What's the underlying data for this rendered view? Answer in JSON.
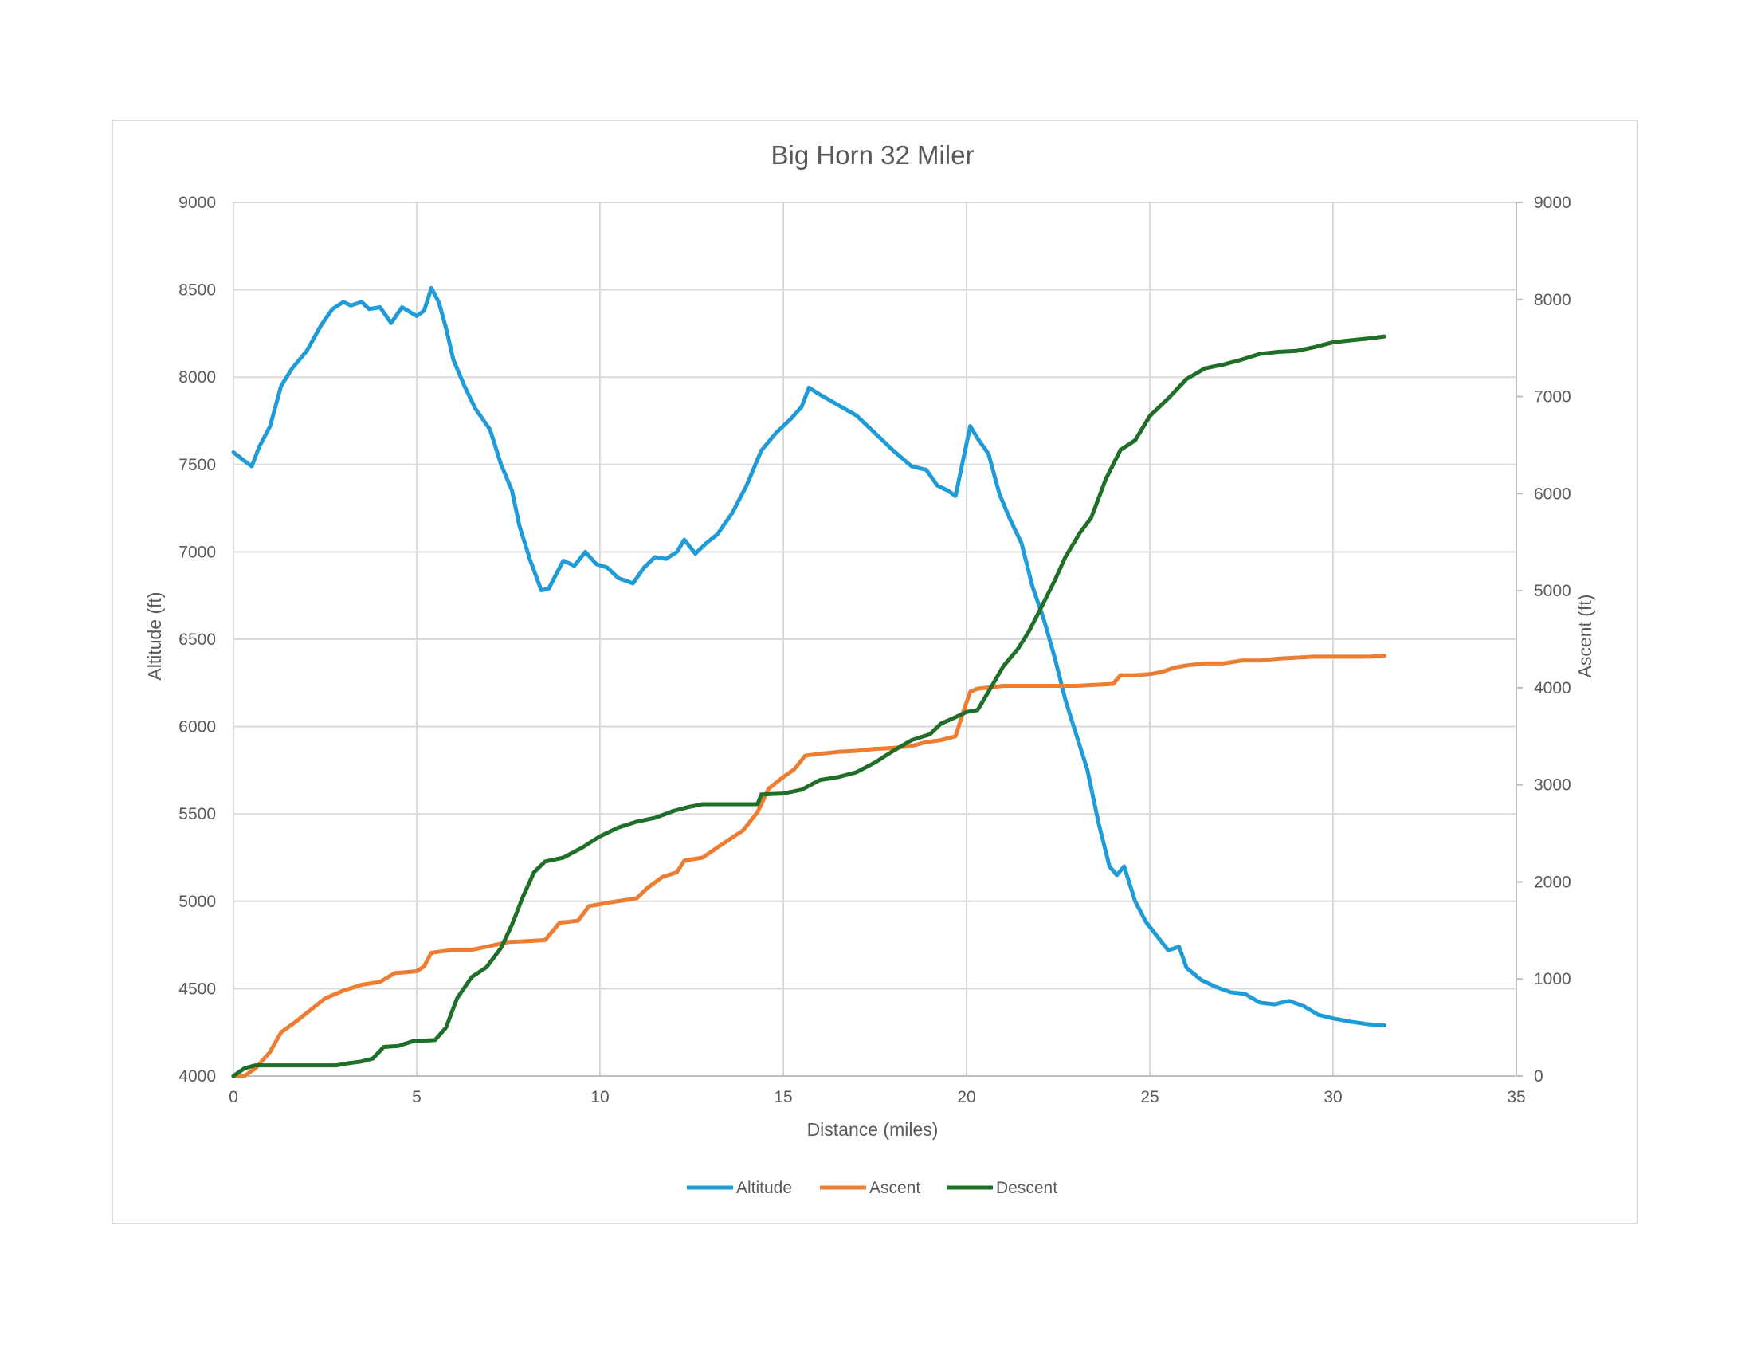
{
  "chart_data": {
    "type": "line",
    "title": "Big Horn 32 Miler",
    "xlabel": "Distance (miles)",
    "ylabel": "Altitude (ft)",
    "y2label": "Ascent (ft)",
    "xlim": [
      0,
      35
    ],
    "ylim": [
      4000,
      9000
    ],
    "y2lim": [
      0,
      9000
    ],
    "x_ticks": [
      "0",
      "5",
      "10",
      "15",
      "20",
      "25",
      "30",
      "35"
    ],
    "y_ticks": [
      "4000",
      "4500",
      "5000",
      "5500",
      "6000",
      "6500",
      "7000",
      "7500",
      "8000",
      "8500",
      "9000"
    ],
    "y2_ticks": [
      "0",
      "1000",
      "2000",
      "3000",
      "4000",
      "5000",
      "6000",
      "7000",
      "8000",
      "9000"
    ],
    "x_tick_values": [
      0,
      5,
      10,
      15,
      20,
      25,
      30,
      35
    ],
    "y_tick_values": [
      4000,
      4500,
      5000,
      5500,
      6000,
      6500,
      7000,
      7500,
      8000,
      8500,
      9000
    ],
    "y2_tick_values": [
      0,
      1000,
      2000,
      3000,
      4000,
      5000,
      6000,
      7000,
      8000,
      9000
    ],
    "grid": true,
    "legend_position": "bottom",
    "series": [
      {
        "name": "Altitude",
        "axis": "left",
        "color": "#1f9bd7",
        "points": [
          [
            0,
            7570
          ],
          [
            0.3,
            7520
          ],
          [
            0.5,
            7490
          ],
          [
            0.7,
            7600
          ],
          [
            1.0,
            7720
          ],
          [
            1.3,
            7950
          ],
          [
            1.6,
            8050
          ],
          [
            2.0,
            8150
          ],
          [
            2.4,
            8300
          ],
          [
            2.7,
            8390
          ],
          [
            3.0,
            8430
          ],
          [
            3.2,
            8410
          ],
          [
            3.5,
            8430
          ],
          [
            3.7,
            8390
          ],
          [
            4.0,
            8400
          ],
          [
            4.3,
            8310
          ],
          [
            4.6,
            8400
          ],
          [
            5.0,
            8350
          ],
          [
            5.2,
            8380
          ],
          [
            5.4,
            8510
          ],
          [
            5.6,
            8430
          ],
          [
            5.8,
            8280
          ],
          [
            6.0,
            8100
          ],
          [
            6.3,
            7950
          ],
          [
            6.6,
            7820
          ],
          [
            7.0,
            7700
          ],
          [
            7.3,
            7500
          ],
          [
            7.6,
            7350
          ],
          [
            7.8,
            7150
          ],
          [
            8.1,
            6950
          ],
          [
            8.4,
            6780
          ],
          [
            8.6,
            6790
          ],
          [
            9.0,
            6950
          ],
          [
            9.3,
            6920
          ],
          [
            9.6,
            7000
          ],
          [
            9.9,
            6930
          ],
          [
            10.2,
            6910
          ],
          [
            10.5,
            6850
          ],
          [
            10.9,
            6820
          ],
          [
            11.2,
            6910
          ],
          [
            11.5,
            6970
          ],
          [
            11.8,
            6960
          ],
          [
            12.1,
            7000
          ],
          [
            12.3,
            7070
          ],
          [
            12.6,
            6990
          ],
          [
            12.9,
            7050
          ],
          [
            13.2,
            7100
          ],
          [
            13.6,
            7220
          ],
          [
            14.0,
            7380
          ],
          [
            14.4,
            7580
          ],
          [
            14.8,
            7680
          ],
          [
            15.2,
            7760
          ],
          [
            15.5,
            7830
          ],
          [
            15.7,
            7940
          ],
          [
            16.0,
            7900
          ],
          [
            16.5,
            7840
          ],
          [
            17.0,
            7780
          ],
          [
            17.5,
            7680
          ],
          [
            18.0,
            7580
          ],
          [
            18.5,
            7490
          ],
          [
            18.9,
            7470
          ],
          [
            19.2,
            7380
          ],
          [
            19.5,
            7350
          ],
          [
            19.7,
            7320
          ],
          [
            19.9,
            7520
          ],
          [
            20.1,
            7720
          ],
          [
            20.3,
            7650
          ],
          [
            20.6,
            7560
          ],
          [
            20.9,
            7330
          ],
          [
            21.2,
            7180
          ],
          [
            21.5,
            7050
          ],
          [
            21.8,
            6800
          ],
          [
            22.1,
            6620
          ],
          [
            22.4,
            6400
          ],
          [
            22.7,
            6150
          ],
          [
            23.0,
            5950
          ],
          [
            23.3,
            5750
          ],
          [
            23.6,
            5450
          ],
          [
            23.9,
            5200
          ],
          [
            24.1,
            5150
          ],
          [
            24.3,
            5200
          ],
          [
            24.6,
            5000
          ],
          [
            24.9,
            4880
          ],
          [
            25.2,
            4800
          ],
          [
            25.5,
            4720
          ],
          [
            25.8,
            4740
          ],
          [
            26.0,
            4620
          ],
          [
            26.4,
            4550
          ],
          [
            26.8,
            4510
          ],
          [
            27.2,
            4480
          ],
          [
            27.6,
            4470
          ],
          [
            28.0,
            4420
          ],
          [
            28.4,
            4410
          ],
          [
            28.8,
            4430
          ],
          [
            29.2,
            4400
          ],
          [
            29.6,
            4350
          ],
          [
            30.0,
            4330
          ],
          [
            30.5,
            4310
          ],
          [
            31.0,
            4295
          ],
          [
            31.4,
            4290
          ]
        ]
      },
      {
        "name": "Ascent",
        "axis": "right",
        "color": "#ed7d31",
        "points": [
          [
            0,
            0
          ],
          [
            0.3,
            0
          ],
          [
            0.6,
            80
          ],
          [
            1.0,
            250
          ],
          [
            1.3,
            450
          ],
          [
            1.7,
            560
          ],
          [
            2.1,
            680
          ],
          [
            2.5,
            800
          ],
          [
            3.0,
            880
          ],
          [
            3.5,
            940
          ],
          [
            4.0,
            970
          ],
          [
            4.4,
            1060
          ],
          [
            5.0,
            1080
          ],
          [
            5.2,
            1130
          ],
          [
            5.4,
            1270
          ],
          [
            6.0,
            1300
          ],
          [
            6.5,
            1300
          ],
          [
            7.0,
            1340
          ],
          [
            7.5,
            1380
          ],
          [
            8.0,
            1390
          ],
          [
            8.5,
            1400
          ],
          [
            8.9,
            1580
          ],
          [
            9.4,
            1600
          ],
          [
            9.7,
            1750
          ],
          [
            10.3,
            1790
          ],
          [
            11.0,
            1830
          ],
          [
            11.3,
            1940
          ],
          [
            11.7,
            2050
          ],
          [
            12.1,
            2100
          ],
          [
            12.3,
            2220
          ],
          [
            12.8,
            2250
          ],
          [
            13.3,
            2380
          ],
          [
            13.9,
            2530
          ],
          [
            14.3,
            2720
          ],
          [
            14.6,
            2960
          ],
          [
            15.0,
            3080
          ],
          [
            15.3,
            3160
          ],
          [
            15.6,
            3300
          ],
          [
            16.0,
            3320
          ],
          [
            16.5,
            3340
          ],
          [
            17.0,
            3350
          ],
          [
            17.5,
            3370
          ],
          [
            18.0,
            3380
          ],
          [
            18.5,
            3400
          ],
          [
            18.9,
            3440
          ],
          [
            19.3,
            3460
          ],
          [
            19.7,
            3500
          ],
          [
            19.9,
            3740
          ],
          [
            20.1,
            3960
          ],
          [
            20.3,
            3990
          ],
          [
            21.0,
            4020
          ],
          [
            22.0,
            4020
          ],
          [
            23.0,
            4020
          ],
          [
            24.0,
            4040
          ],
          [
            24.2,
            4130
          ],
          [
            24.6,
            4130
          ],
          [
            25.0,
            4140
          ],
          [
            25.3,
            4160
          ],
          [
            25.7,
            4210
          ],
          [
            26.0,
            4230
          ],
          [
            26.5,
            4250
          ],
          [
            27.0,
            4250
          ],
          [
            27.5,
            4280
          ],
          [
            28.0,
            4280
          ],
          [
            28.5,
            4300
          ],
          [
            29.0,
            4310
          ],
          [
            29.5,
            4320
          ],
          [
            30.0,
            4320
          ],
          [
            30.5,
            4320
          ],
          [
            31.0,
            4320
          ],
          [
            31.4,
            4330
          ]
        ]
      },
      {
        "name": "Descent",
        "axis": "right",
        "color": "#1f6f29",
        "points": [
          [
            0,
            0
          ],
          [
            0.3,
            80
          ],
          [
            0.6,
            110
          ],
          [
            1.0,
            110
          ],
          [
            2.0,
            110
          ],
          [
            2.8,
            110
          ],
          [
            3.1,
            130
          ],
          [
            3.5,
            150
          ],
          [
            3.8,
            180
          ],
          [
            4.1,
            300
          ],
          [
            4.5,
            310
          ],
          [
            4.9,
            360
          ],
          [
            5.5,
            370
          ],
          [
            5.8,
            500
          ],
          [
            6.1,
            800
          ],
          [
            6.5,
            1020
          ],
          [
            6.9,
            1120
          ],
          [
            7.3,
            1320
          ],
          [
            7.6,
            1560
          ],
          [
            7.9,
            1850
          ],
          [
            8.2,
            2100
          ],
          [
            8.5,
            2210
          ],
          [
            9.0,
            2250
          ],
          [
            9.5,
            2350
          ],
          [
            10.0,
            2470
          ],
          [
            10.5,
            2560
          ],
          [
            11.0,
            2620
          ],
          [
            11.5,
            2660
          ],
          [
            12.0,
            2730
          ],
          [
            12.4,
            2770
          ],
          [
            12.8,
            2800
          ],
          [
            13.5,
            2800
          ],
          [
            14.3,
            2800
          ],
          [
            14.4,
            2900
          ],
          [
            15.0,
            2910
          ],
          [
            15.5,
            2950
          ],
          [
            16.0,
            3050
          ],
          [
            16.5,
            3080
          ],
          [
            17.0,
            3130
          ],
          [
            17.5,
            3230
          ],
          [
            18.0,
            3350
          ],
          [
            18.5,
            3460
          ],
          [
            19.0,
            3520
          ],
          [
            19.3,
            3630
          ],
          [
            19.6,
            3680
          ],
          [
            20.0,
            3750
          ],
          [
            20.3,
            3770
          ],
          [
            20.6,
            3960
          ],
          [
            21.0,
            4220
          ],
          [
            21.4,
            4400
          ],
          [
            21.7,
            4580
          ],
          [
            22.0,
            4800
          ],
          [
            22.4,
            5100
          ],
          [
            22.7,
            5350
          ],
          [
            23.1,
            5600
          ],
          [
            23.4,
            5750
          ],
          [
            23.8,
            6150
          ],
          [
            24.2,
            6450
          ],
          [
            24.6,
            6550
          ],
          [
            25.0,
            6800
          ],
          [
            25.5,
            6980
          ],
          [
            26.0,
            7180
          ],
          [
            26.5,
            7290
          ],
          [
            27.0,
            7330
          ],
          [
            27.5,
            7380
          ],
          [
            28.0,
            7440
          ],
          [
            28.5,
            7460
          ],
          [
            29.0,
            7470
          ],
          [
            29.5,
            7510
          ],
          [
            30.0,
            7560
          ],
          [
            30.5,
            7580
          ],
          [
            31.0,
            7600
          ],
          [
            31.4,
            7620
          ]
        ]
      }
    ]
  }
}
